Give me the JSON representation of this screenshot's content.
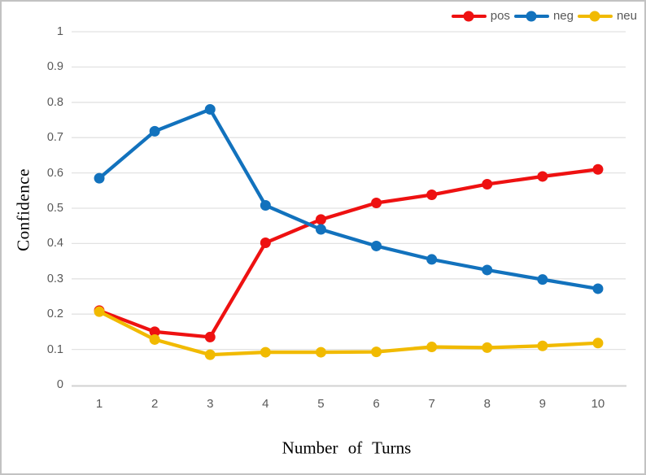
{
  "window": {
    "background_color": "#ffffff",
    "border_color": "#c2c2c2"
  },
  "style": {
    "grid_color": "#e2e2e2",
    "axis_line_color": "#d2d2d2",
    "tick_text_color": "#595959",
    "legend_text_color": "#595959",
    "axis_title_color": "#000000"
  },
  "chart_data": {
    "type": "line",
    "title": "",
    "xlabel": "Number of Turns",
    "ylabel": "Confidence",
    "categories": [
      "1",
      "2",
      "3",
      "4",
      "5",
      "6",
      "7",
      "8",
      "9",
      "10"
    ],
    "ytick_labels": [
      "0",
      "0.1",
      "0.2",
      "0.3",
      "0.4",
      "0.5",
      "0.6",
      "0.7",
      "0.8",
      "0.9",
      "1"
    ],
    "yticks": [
      0,
      0.1,
      0.2,
      0.3,
      0.4,
      0.5,
      0.6,
      0.7,
      0.8,
      0.9,
      1
    ],
    "ylim": [
      0,
      1
    ],
    "grid": true,
    "legend_position": "top-right",
    "marker": "circle",
    "series": [
      {
        "name": "pos",
        "color": "#ee1111",
        "values": [
          0.21,
          0.15,
          0.135,
          0.402,
          0.468,
          0.515,
          0.538,
          0.568,
          0.59,
          0.61
        ]
      },
      {
        "name": "neg",
        "color": "#1272bd",
        "values": [
          0.585,
          0.718,
          0.78,
          0.508,
          0.44,
          0.393,
          0.355,
          0.325,
          0.298,
          0.272
        ]
      },
      {
        "name": "neu",
        "color": "#f1ba00",
        "values": [
          0.207,
          0.128,
          0.085,
          0.092,
          0.092,
          0.093,
          0.107,
          0.105,
          0.11,
          0.118
        ]
      }
    ]
  }
}
